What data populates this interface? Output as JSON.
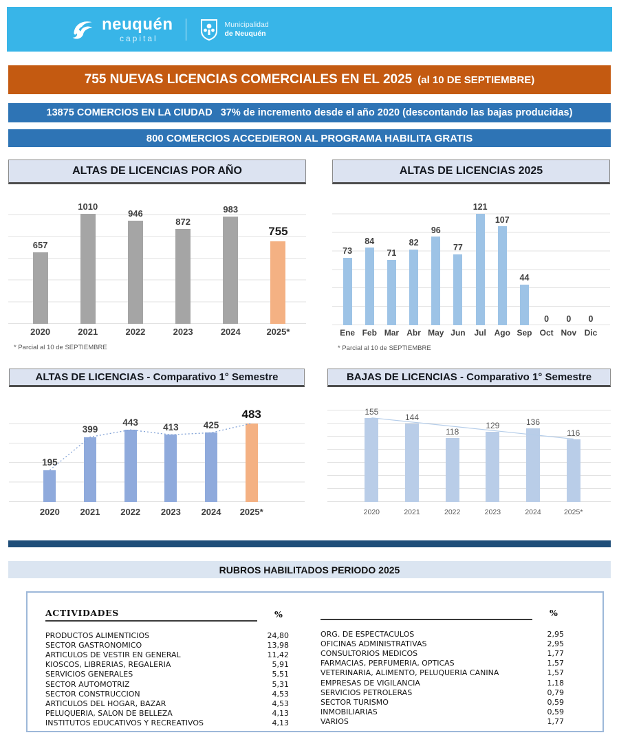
{
  "header": {
    "brand_name": "neuquén",
    "brand_subtitle": "capital",
    "org_line1": "Municipalidad",
    "org_line2": "de Neuquén"
  },
  "banners": {
    "main_text": "755 NUEVAS LICENCIAS COMERCIALES EN EL 2025",
    "main_suffix": "(al 10 DE SEPTIEMBRE)",
    "secondary_lead": "13875 COMERCIOS EN LA CIUDAD",
    "secondary_rest": "37% de incremento desde el año 2020 (descontando las bajas producidas)",
    "tertiary": "800 COMERCIOS ACCEDIERON AL PROGRAMA HABILITA GRATIS"
  },
  "colors": {
    "header_band": "#38B5E8",
    "banner_orange": "#C45A11",
    "banner_blue": "#2E74B5",
    "title_box_bg": "#DCE3F1",
    "divider_dark_blue": "#1F4E79",
    "rubros_banner_bg": "#DBE5F1",
    "bar_gray": "#A5A5A5",
    "bar_orange": "#F4B183",
    "bar_blue_light": "#9DC3E6",
    "bar_blue_medium": "#8FAADC",
    "bar_blue_pale": "#B9CDE8"
  },
  "chart_data": [
    {
      "id": "altas_por_anio",
      "type": "bar",
      "title": "ALTAS DE LICENCIAS POR AÑO",
      "categories": [
        "2020",
        "2021",
        "2022",
        "2023",
        "2024",
        "2025*"
      ],
      "values": [
        657,
        1010,
        946,
        872,
        983,
        755
      ],
      "highlight_index": 5,
      "bar_color": "#A5A5A5",
      "highlight_color": "#F4B183",
      "ylim": [
        0,
        1200
      ],
      "grid": true,
      "footnote": "* Parcial al 10 de SEPTIEMBRE"
    },
    {
      "id": "altas_2025_mensual",
      "type": "bar",
      "title": "ALTAS DE LICENCIAS 2025",
      "categories": [
        "Ene",
        "Feb",
        "Mar",
        "Abr",
        "May",
        "Jun",
        "Jul",
        "Ago",
        "Sep",
        "Oct",
        "Nov",
        "Dic"
      ],
      "values": [
        73,
        84,
        71,
        82,
        96,
        77,
        121,
        107,
        44,
        0,
        0,
        0
      ],
      "bar_color": "#9DC3E6",
      "ylim": [
        0,
        140
      ],
      "grid": true,
      "footnote": "* Parcial al 10 de SEPTIEMBRE"
    },
    {
      "id": "altas_comparativo_1_semestre",
      "type": "bar",
      "title": "ALTAS DE LICENCIAS - Comparativo 1° Semestre",
      "categories": [
        "2020",
        "2021",
        "2022",
        "2023",
        "2024",
        "2025*"
      ],
      "values": [
        195,
        399,
        443,
        413,
        425,
        483
      ],
      "highlight_index": 5,
      "bar_color": "#8FAADC",
      "highlight_color": "#F4B183",
      "trendline": "dotted",
      "ylim": [
        0,
        600
      ],
      "grid": true
    },
    {
      "id": "bajas_comparativo_1_semestre",
      "type": "bar",
      "title": "BAJAS DE LICENCIAS - Comparativo 1° Semestre",
      "categories": [
        "2020",
        "2021",
        "2022",
        "2023",
        "2024",
        "2025*"
      ],
      "values": [
        155,
        144,
        118,
        129,
        136,
        116
      ],
      "bar_color": "#B9CDE8",
      "trendline": "solid",
      "ylim": [
        0,
        180
      ],
      "grid": true
    }
  ],
  "rubros": {
    "banner": "RUBROS HABILITADOS PERIODO 2025",
    "col_header_left": "ACTIVIDADES",
    "pct_header": "%",
    "left_rows": [
      {
        "name": "PRODUCTOS ALIMENTICIOS",
        "pct": "24,80"
      },
      {
        "name": "SECTOR GASTRONOMICO",
        "pct": "13,98"
      },
      {
        "name": "ARTICULOS DE VESTIR EN GENERAL",
        "pct": "11,42"
      },
      {
        "name": "KIOSCOS, LIBRERIAS, REGALERIA",
        "pct": "5,91"
      },
      {
        "name": "SERVICIOS GENERALES",
        "pct": "5,51"
      },
      {
        "name": "SECTOR AUTOMOTRIZ",
        "pct": "5,31"
      },
      {
        "name": "SECTOR CONSTRUCCION",
        "pct": "4,53"
      },
      {
        "name": "ARTICULOS DEL HOGAR, BAZAR",
        "pct": "4,53"
      },
      {
        "name": "PELUQUERIA, SALON DE BELLEZA",
        "pct": "4,13"
      },
      {
        "name": "INSTITUTOS EDUCATIVOS Y RECREATIVOS",
        "pct": "4,13"
      }
    ],
    "right_rows": [
      {
        "name": "ORG. DE ESPECTACULOS",
        "pct": "2,95"
      },
      {
        "name": "OFICINAS ADMINISTRATIVAS",
        "pct": "2,95"
      },
      {
        "name": "CONSULTORIOS MEDICOS",
        "pct": "1,77"
      },
      {
        "name": "FARMACIAS, PERFUMERIA, OPTICAS",
        "pct": "1,57"
      },
      {
        "name": "VETERINARIA, ALIMENTO, PELUQUERIA CANINA",
        "pct": "1,57"
      },
      {
        "name": "EMPRESAS  DE  VIGILANCIA",
        "pct": "1,18"
      },
      {
        "name": "SERVICIOS PETROLERAS",
        "pct": "0,79"
      },
      {
        "name": "SECTOR TURISMO",
        "pct": "0,59"
      },
      {
        "name": "INMOBILIARIAS",
        "pct": "0,59"
      },
      {
        "name": "VARIOS",
        "pct": "1,77"
      }
    ]
  }
}
